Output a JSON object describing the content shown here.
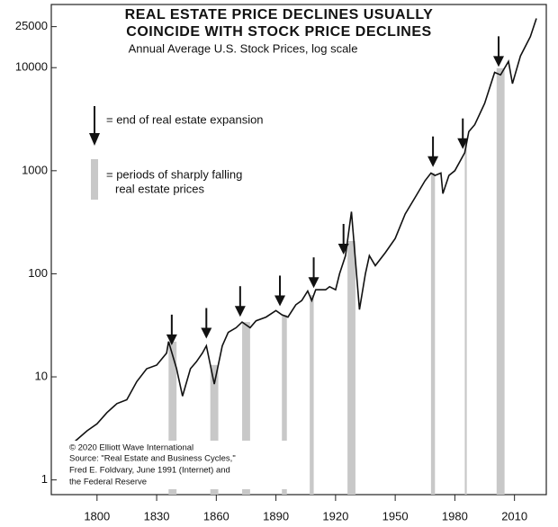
{
  "chart_data": {
    "type": "line",
    "title": [
      "REAL ESTATE PRICE DECLINES USUALLY",
      "COINCIDE WITH STOCK PRICE DECLINES"
    ],
    "subtitle": "Annual Average U.S. Stock Prices, log scale",
    "log_scale": true,
    "xlim": [
      1777,
      2026
    ],
    "xticks": [
      1800,
      1830,
      1860,
      1890,
      1920,
      1950,
      1980,
      2010
    ],
    "ylim": [
      0.72,
      41000
    ],
    "yticks": [
      1,
      10,
      100,
      1000,
      10000,
      25000
    ],
    "series": [
      {
        "name": "Annual Average U.S. Stock Prices",
        "color": "#111111",
        "x": [
          1787,
          1795,
          1800,
          1805,
          1810,
          1815,
          1820,
          1825,
          1830,
          1835,
          1836,
          1840,
          1843,
          1847,
          1850,
          1853,
          1855,
          1859,
          1863,
          1866,
          1870,
          1873,
          1877,
          1880,
          1885,
          1890,
          1893,
          1896,
          1900,
          1903,
          1906,
          1908,
          1910,
          1915,
          1917,
          1920,
          1922,
          1925,
          1928,
          1932,
          1935,
          1937,
          1940,
          1945,
          1950,
          1955,
          1960,
          1965,
          1968,
          1970,
          1973,
          1974,
          1977,
          1980,
          1985,
          1987,
          1990,
          1995,
          2000,
          2003,
          2007,
          2009,
          2013,
          2018,
          2021
        ],
        "values": [
          2.2,
          3.0,
          3.5,
          4.5,
          5.5,
          6.0,
          9,
          12,
          13,
          17,
          22,
          12,
          6.5,
          12,
          14,
          17,
          20,
          8.5,
          20,
          27,
          30,
          34,
          30,
          35,
          38,
          44,
          40,
          38,
          50,
          55,
          68,
          55,
          70,
          70,
          75,
          70,
          100,
          150,
          400,
          45,
          100,
          150,
          120,
          160,
          220,
          380,
          550,
          800,
          950,
          900,
          950,
          600,
          900,
          1000,
          1500,
          2400,
          2800,
          4500,
          9000,
          8500,
          11500,
          7000,
          13000,
          20000,
          30000
        ]
      }
    ],
    "bands": [
      [
        1836,
        1840
      ],
      [
        1857,
        1861
      ],
      [
        1873,
        1877
      ],
      [
        1893,
        1895.5
      ],
      [
        1907,
        1909
      ],
      [
        1926,
        1930
      ],
      [
        1968,
        1970
      ],
      [
        1985,
        1986
      ],
      [
        2001,
        2005
      ]
    ],
    "band_color": "#c8c8c8",
    "arrows": [
      1837.6,
      1855,
      1872,
      1892,
      1909,
      1924,
      1969,
      1984,
      2002
    ],
    "legend": {
      "arrow": "= end of real estate expansion",
      "band": [
        "= periods of sharply falling",
        "real estate prices"
      ]
    },
    "source": [
      "© 2020 Elliott Wave International",
      "Source: \"Real Estate and Business Cycles,\"",
      "Fred E. Foldvary, June 1991 (Internet) and",
      "the Federal Reserve"
    ]
  }
}
